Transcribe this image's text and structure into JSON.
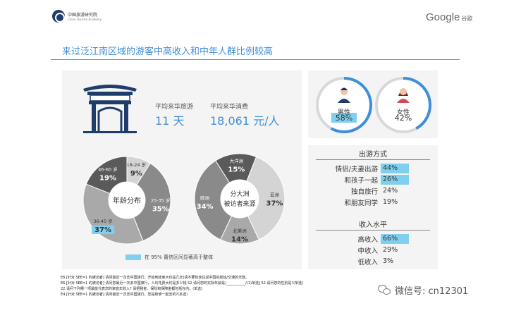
{
  "header": {
    "org_cn": "中国旅游研究院",
    "org_en": "China Tourism Academy",
    "brand": "Google",
    "brand_cn": "谷歌"
  },
  "title": "来过泛江南区域的游客中高收入和中年人群比例较高",
  "stats": [
    {
      "label": "平均来华旅游",
      "value": "11 天"
    },
    {
      "label": "平均来华消费",
      "value": "18,061 元/人"
    }
  ],
  "gender": {
    "male": {
      "label": "男性",
      "value": "58%",
      "fraction": 0.58
    },
    "female": {
      "label": "女性",
      "value": "42%",
      "fraction": 0.42
    }
  },
  "travel_mode": {
    "heading": "出游方式",
    "rows": [
      {
        "label": "情侣/夫妻出游",
        "value": "44%",
        "highlight": true
      },
      {
        "label": "和孩子一起",
        "value": "26%",
        "highlight": true
      },
      {
        "label": "独自旅行",
        "value": "24%",
        "highlight": false
      },
      {
        "label": "和朋友同学",
        "value": "19%",
        "highlight": false
      }
    ]
  },
  "income": {
    "heading": "收入水平",
    "rows": [
      {
        "label": "高收入",
        "value": "66%",
        "highlight": true
      },
      {
        "label": "中收入",
        "value": "29%",
        "highlight": false
      },
      {
        "label": "低收入",
        "value": "3%",
        "highlight": false
      }
    ]
  },
  "legend": "在 95% 置信区间显著高于整体",
  "chart_data": [
    {
      "type": "pie",
      "title": "年龄分布",
      "categories": [
        "18-24 岁",
        "25-35 岁",
        "36-45 岁",
        "46-60 岁"
      ],
      "values": [
        9,
        35,
        37,
        19
      ],
      "labels": [
        "9%",
        "35%",
        "37%",
        "19%"
      ],
      "colors": [
        "#d4d4d4",
        "#8a8a8a",
        "#a9a9a9",
        "#5a5a5a"
      ],
      "highlight": [
        false,
        false,
        true,
        false
      ]
    },
    {
      "type": "pie",
      "title": "分大洲被访者来源",
      "categories": [
        "大洋洲",
        "亚洲",
        "北美洲",
        "欧洲"
      ],
      "values": [
        15,
        37,
        14,
        34
      ],
      "labels": [
        "15%",
        "37%",
        "14%",
        "34%"
      ],
      "colors": [
        "#5a5a5a",
        "#d4d4d4",
        "#a9a9a9",
        "#8a8a8a"
      ]
    }
  ],
  "footnotes": [
    "E6.[针对 SEE=1 的被访者] 请问最近一次去中国旅行，开始到结束大约是几天(请不要包含往返中国的航班/交通的天数。",
    "E6.[针对 SEE=1 的被访者] 请问您最近一次去中国旅行，人均花费大约是多少钱 S2.请问您的实际年龄是/___________/(1)单选] S2.请问您的性别是?(单选)",
    "22.请问下列哪一项最能代表您的家庭年收入? 请把税金、保险和保障金都包括在内。(单选)",
    "E4.[针对 SEE=1 的被访者] 请问最近一次去中国旅行，您是和谁一起去的?(多选)"
  ],
  "watermark": "微信号: cn12301"
}
